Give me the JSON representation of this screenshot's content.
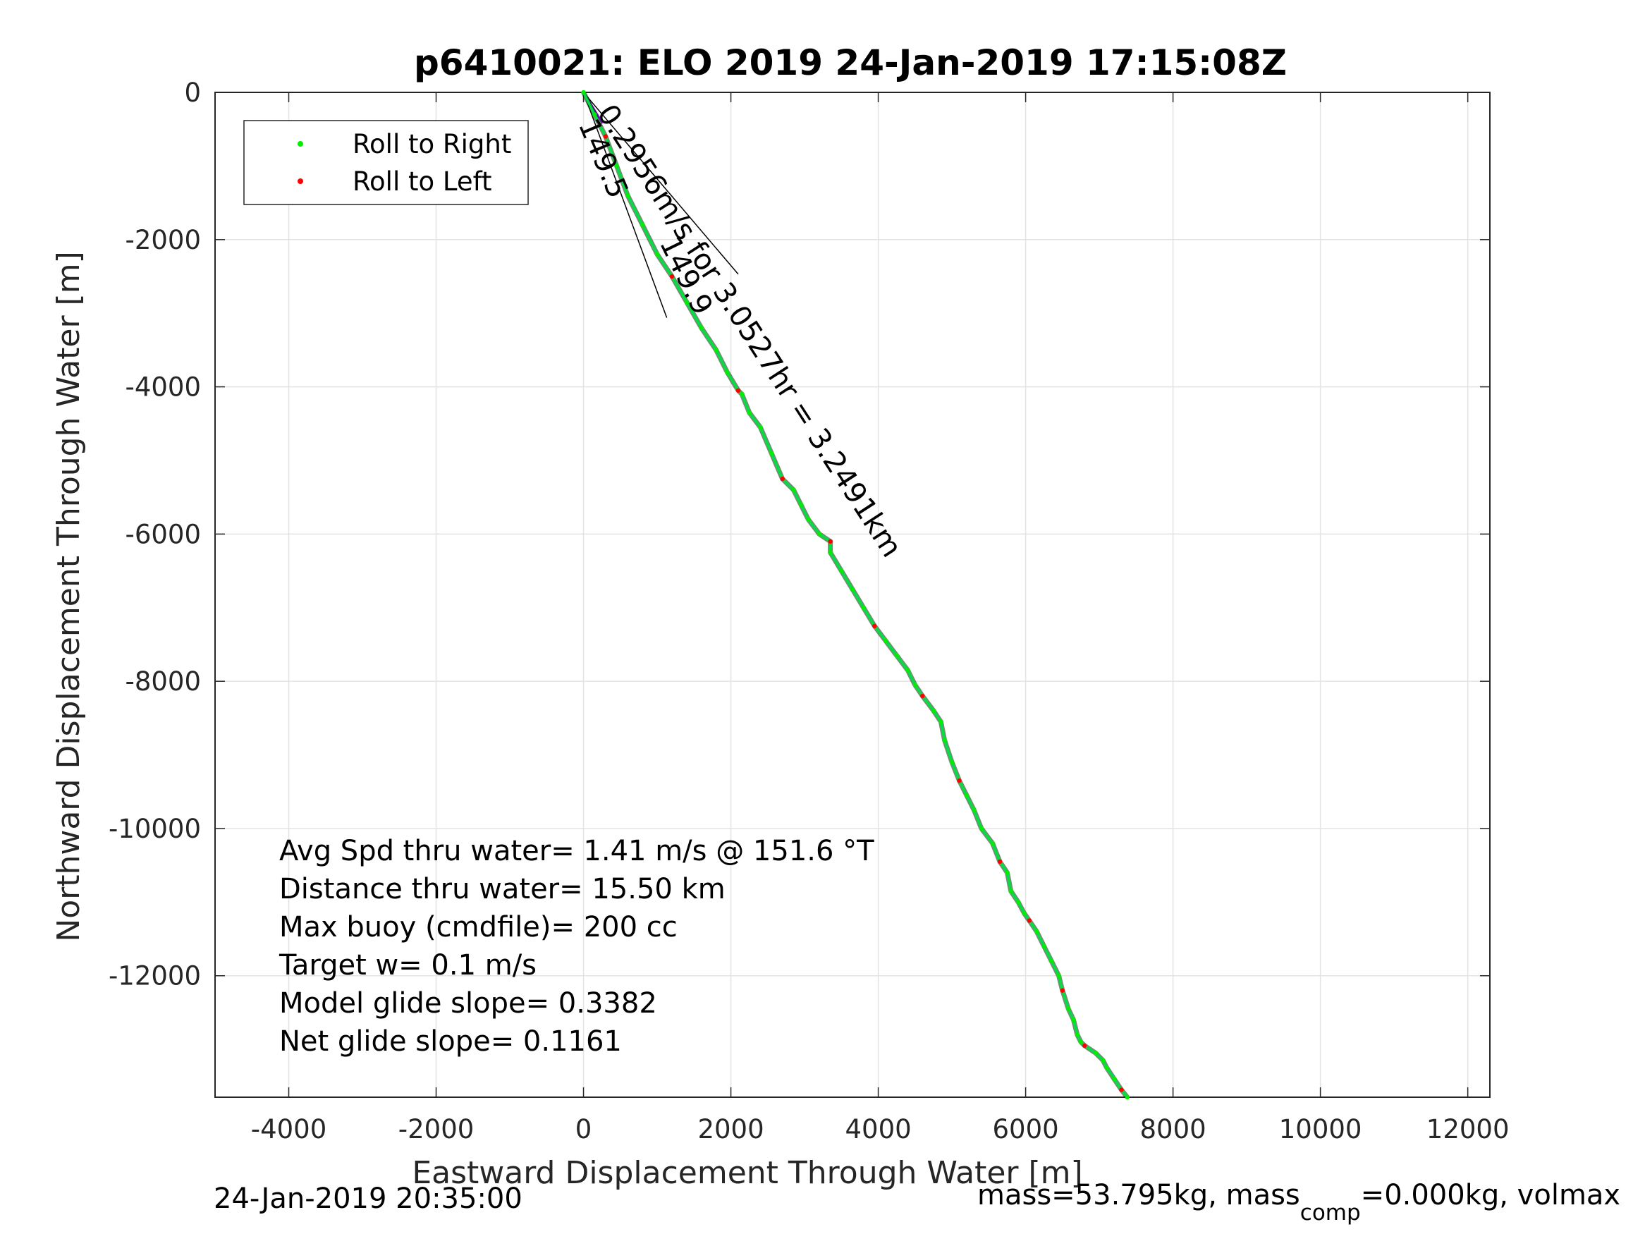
{
  "chart_data": {
    "type": "line",
    "title": "p6410021: ELO 2019 24-Jan-2019 17:15:08Z",
    "xlabel": "Eastward Displacement Through Water [m]",
    "ylabel": "Northward Displacement Through Water [m]",
    "xlim": [
      -5000,
      12300
    ],
    "ylim": [
      -13650,
      0
    ],
    "xticks": [
      -4000,
      -2000,
      0,
      2000,
      4000,
      6000,
      8000,
      10000,
      12000
    ],
    "yticks": [
      0,
      -2000,
      -4000,
      -6000,
      -8000,
      -10000,
      -12000
    ],
    "xtick_labels": [
      "-4000",
      "-2000",
      "0",
      "2000",
      "4000",
      "6000",
      "8000",
      "10000",
      "12000"
    ],
    "ytick_labels": [
      "0",
      "-2000",
      "-4000",
      "-6000",
      "-8000",
      "-10000",
      "-12000"
    ],
    "grid": true,
    "legend_position": "top-left",
    "legend": [
      {
        "label": "Roll to Right",
        "color": "#00ee00"
      },
      {
        "label": "Roll to Left",
        "color": "#ff0000"
      }
    ],
    "series": [
      {
        "color": "#00e040",
        "x": [
          0,
          150,
          300,
          450,
          600,
          800,
          1000,
          1200,
          1400,
          1600,
          1800,
          1950,
          2100,
          2150,
          2250,
          2400,
          2550,
          2700,
          2850,
          2950,
          3050,
          3200,
          3350,
          3350,
          3500,
          3650,
          3800,
          3950,
          4100,
          4250,
          4400,
          4500,
          4600,
          4750,
          4850,
          4900,
          5000,
          5100,
          5200,
          5300,
          5400,
          5550,
          5650,
          5750,
          5800,
          5900,
          5980,
          6050,
          6150,
          6250,
          6350,
          6450,
          6500,
          6580,
          6650,
          6700,
          6750,
          6800,
          6950,
          7050,
          7100,
          7200,
          7300,
          7380
        ],
        "y": [
          0,
          -300,
          -600,
          -1000,
          -1400,
          -1800,
          -2200,
          -2500,
          -2850,
          -3200,
          -3500,
          -3800,
          -4050,
          -4100,
          -4350,
          -4550,
          -4900,
          -5250,
          -5400,
          -5600,
          -5800,
          -6000,
          -6100,
          -6250,
          -6500,
          -6750,
          -7000,
          -7250,
          -7450,
          -7650,
          -7850,
          -8050,
          -8200,
          -8400,
          -8550,
          -8800,
          -9100,
          -9350,
          -9550,
          -9750,
          -10000,
          -10200,
          -10450,
          -10600,
          -10850,
          -11000,
          -11150,
          -11250,
          -11400,
          -11600,
          -11800,
          -12000,
          -12200,
          -12450,
          -12600,
          -12800,
          -12900,
          -12950,
          -13050,
          -13150,
          -13250,
          -13400,
          -13550,
          -13650
        ]
      }
    ],
    "annotations": {
      "heading_line_1": "0.2956m/s for 3.0527hr = 3.2491km",
      "heading_line_2": "149.5",
      "heading_line_3": "149.9"
    },
    "stats": [
      "Avg Spd thru water=  1.41 m/s @ 151.6 °T",
      "Distance thru water= 15.50 km",
      "Max buoy (cmdfile)= 200 cc",
      "Target w= 0.1 m/s",
      "Model glide slope= 0.3382",
      "Net glide slope= 0.1161"
    ]
  },
  "footer": {
    "timestamp": "24-Jan-2019 20:35:00",
    "mass_prefix": "mass=53.795kg, mass",
    "mass_sub": "comp",
    "mass_suffix": "=0.000kg, volmax"
  }
}
